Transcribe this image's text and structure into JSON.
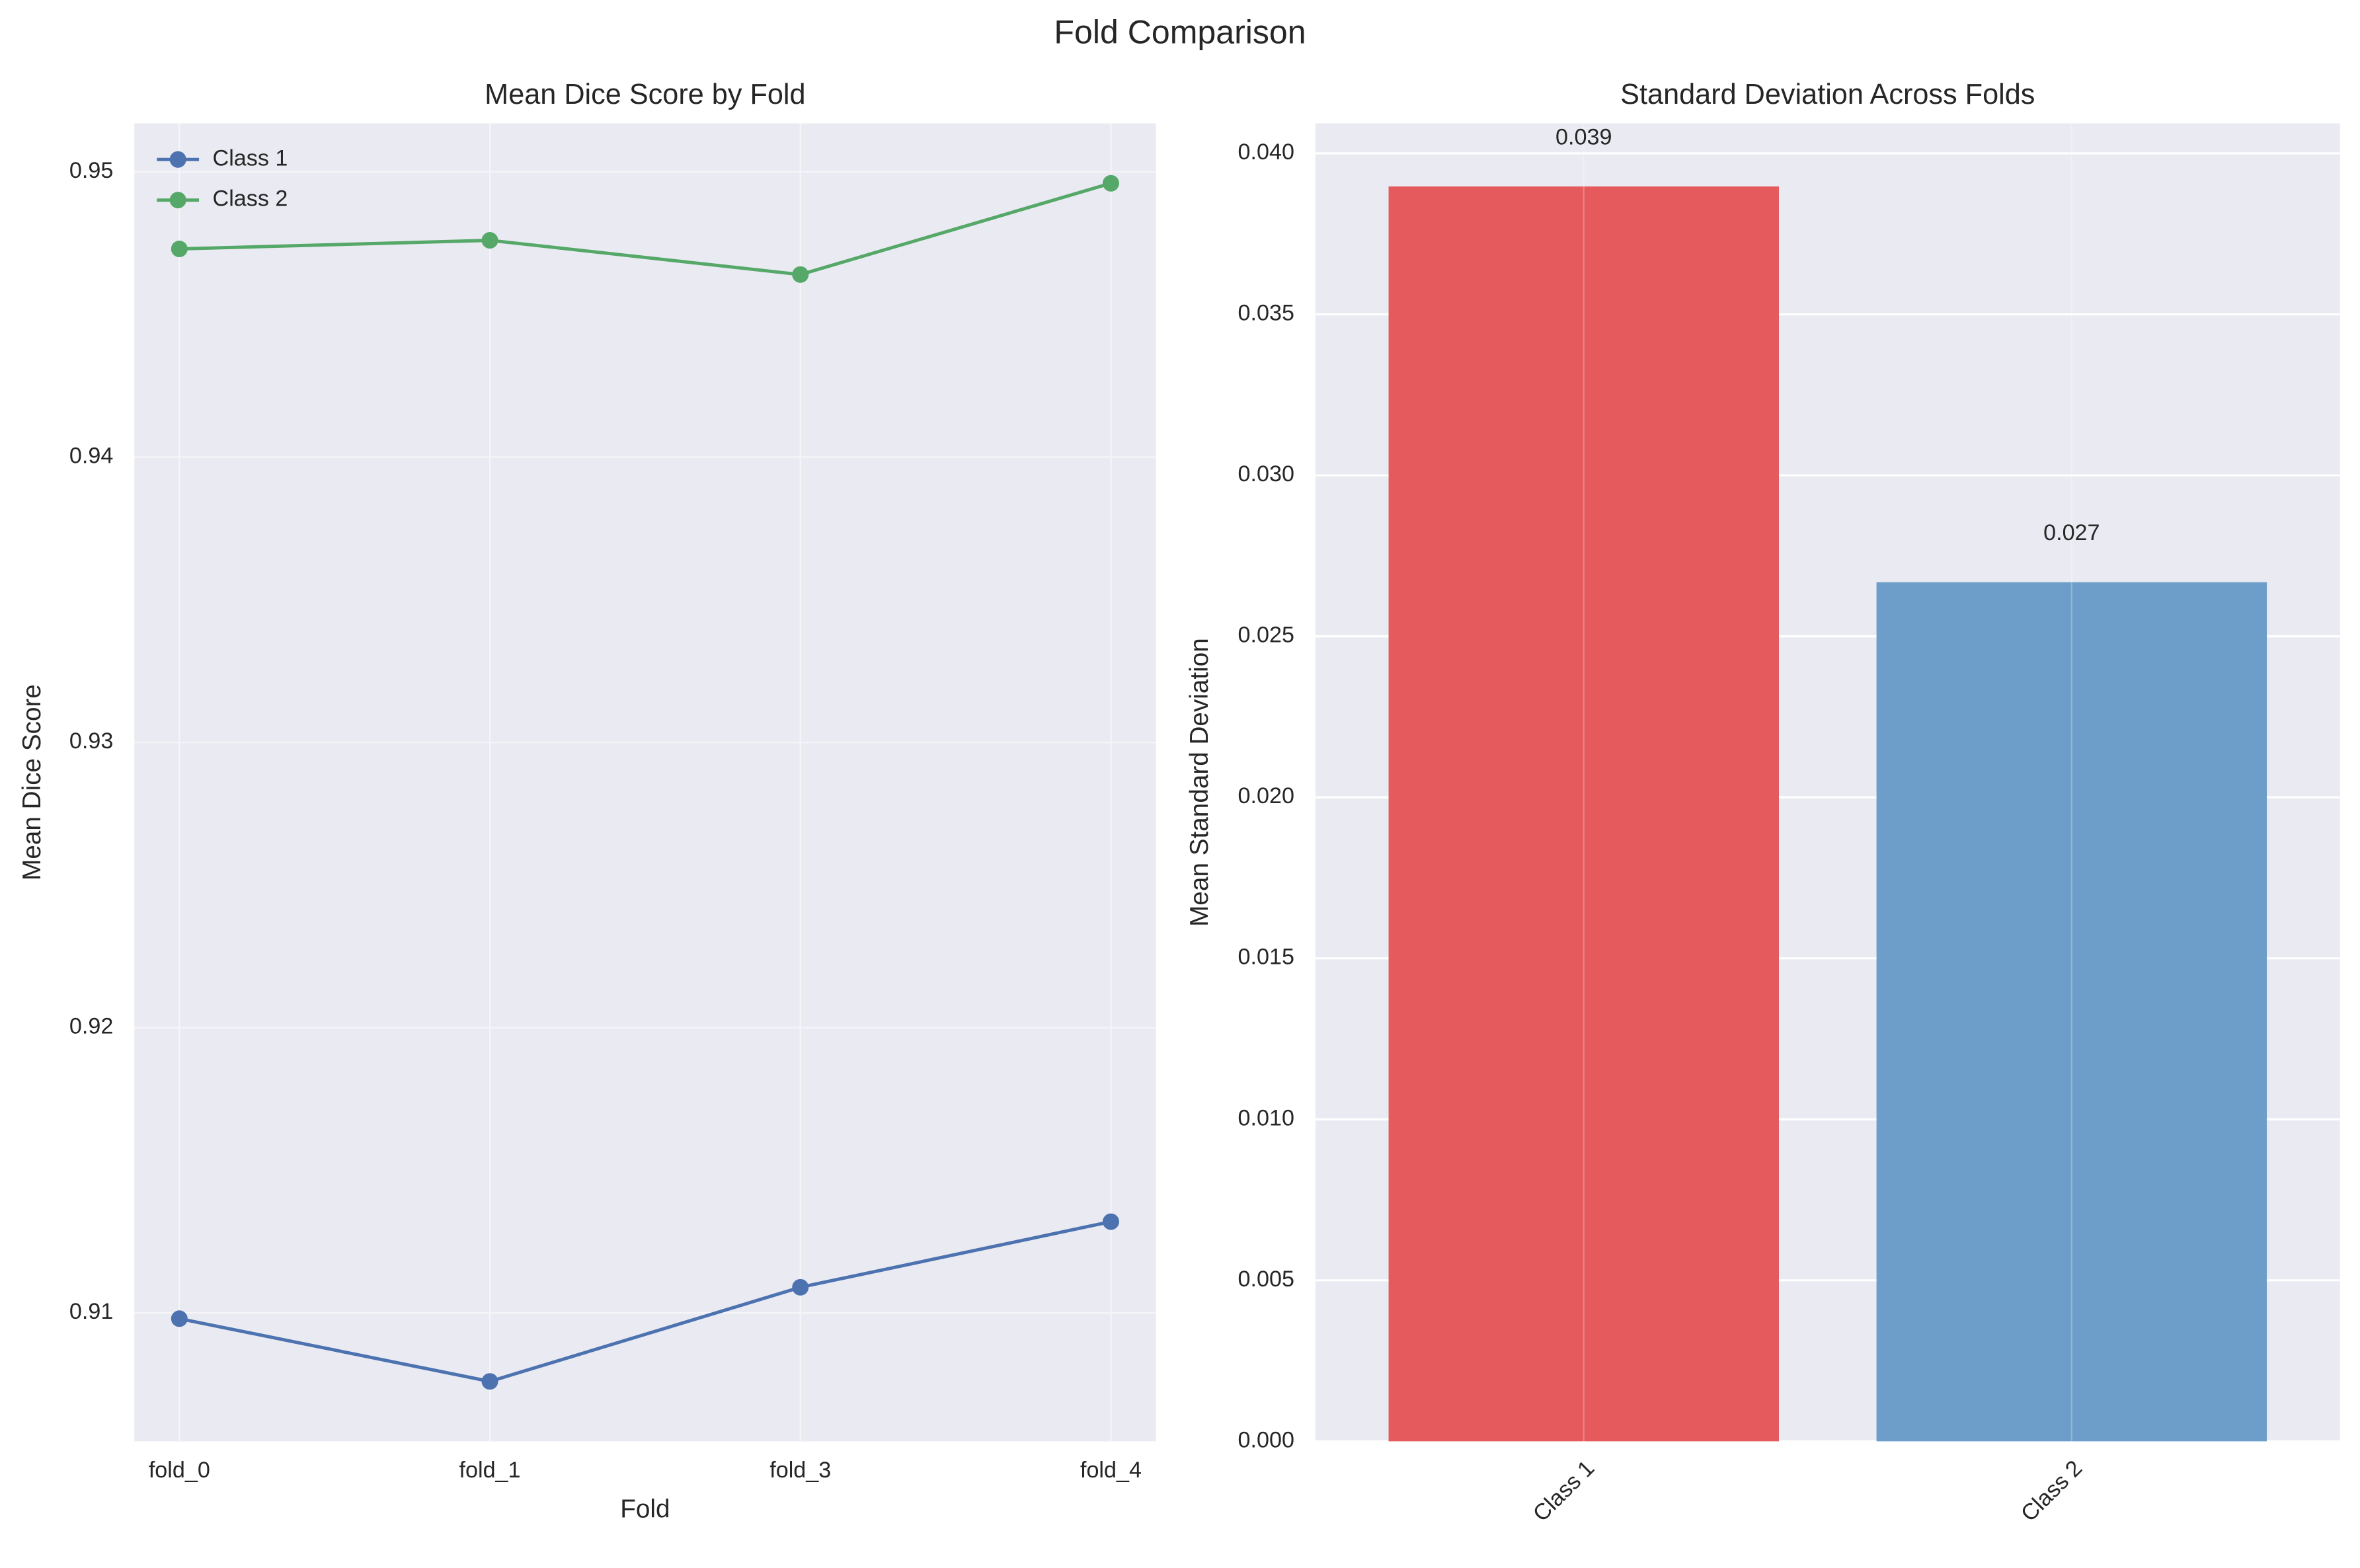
{
  "title": "Fold Comparison",
  "chart_data": [
    {
      "type": "line",
      "title": "Mean Dice Score by Fold",
      "x_label": "Fold",
      "y_label": "Mean Dice Score",
      "categories": [
        "fold_0",
        "fold_1",
        "fold_3",
        "fold_4"
      ],
      "series": [
        {
          "name": "Class 1",
          "color": "#4c72b0",
          "values": [
            0.9098,
            0.9076,
            0.9109,
            0.9132
          ]
        },
        {
          "name": "Class 2",
          "color": "#55a868",
          "values": [
            0.9473,
            0.9476,
            0.9464,
            0.9496
          ]
        }
      ],
      "ylim": [
        0.9055,
        0.9517
      ],
      "yticks": [
        0.91,
        0.92,
        0.93,
        0.94,
        0.95
      ],
      "grid": true,
      "legend": "upper left"
    },
    {
      "type": "bar",
      "title": "Standard Deviation Across Folds",
      "y_label": "Mean Standard Deviation",
      "categories": [
        "Class 1",
        "Class 2"
      ],
      "values": [
        0.03897,
        0.02668
      ],
      "value_labels": [
        "0.039",
        "0.027"
      ],
      "colors": [
        "#e55a5c",
        "#6d9ec9"
      ],
      "ylim": [
        0,
        0.04093
      ],
      "yticks": [
        {
          "value": 0,
          "label": "0.000"
        },
        {
          "value": 0.005,
          "label": "0.005"
        },
        {
          "value": 0.01,
          "label": "0.010"
        },
        {
          "value": 0.015,
          "label": "0.015"
        },
        {
          "value": 0.02,
          "label": "0.020"
        },
        {
          "value": 0.025,
          "label": "0.025"
        },
        {
          "value": 0.03,
          "label": "0.030"
        },
        {
          "value": 0.035,
          "label": "0.035"
        },
        {
          "value": 0.04,
          "label": "0.040"
        }
      ],
      "grid": true
    }
  ]
}
